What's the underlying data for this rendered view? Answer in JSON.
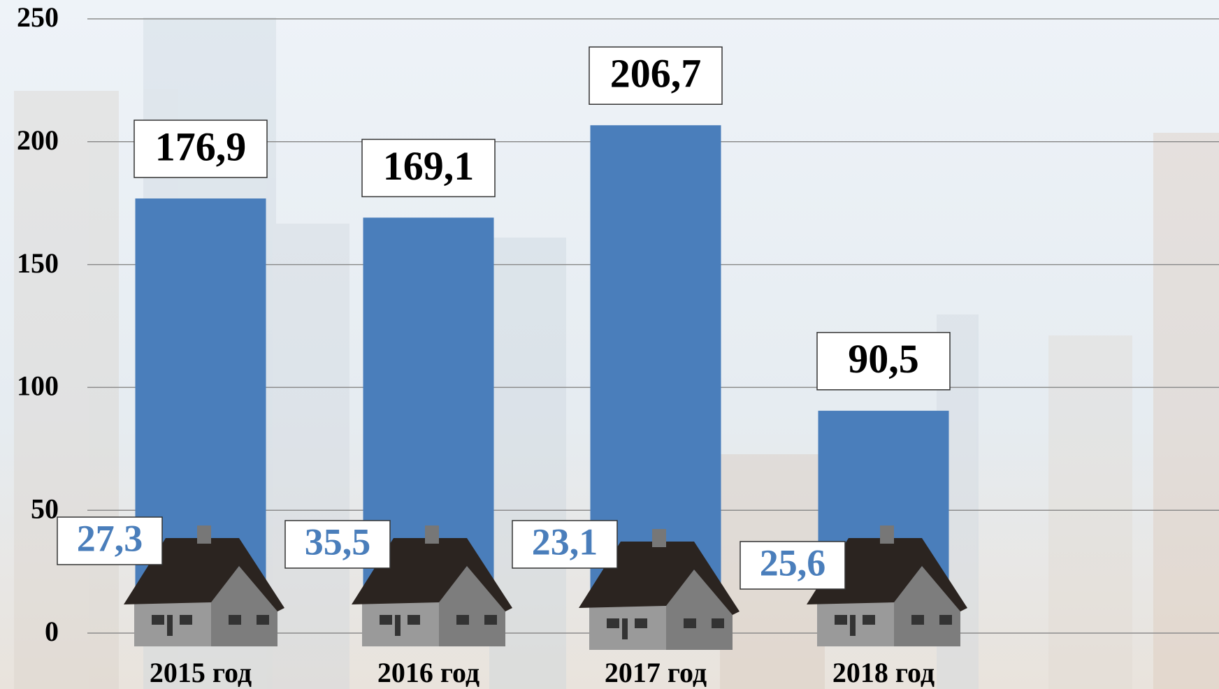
{
  "chart_data": {
    "type": "bar",
    "categories": [
      "2015 год",
      "2016 год",
      "2017 год",
      "2018 год"
    ],
    "values": [
      176.9,
      169.1,
      206.7,
      90.5
    ],
    "value_labels": [
      "176,9",
      "169,1",
      "206,7",
      "90,5"
    ],
    "color": "#4a7ebb",
    "house_values": [
      27.3,
      35.5,
      23.1,
      25.6
    ],
    "house_labels": [
      "27,3",
      "35,5",
      "23,1",
      "25,6"
    ],
    "house_color": "#4a7ebb",
    "ylim": [
      0,
      250
    ],
    "yticks": [
      0,
      50,
      100,
      150,
      200,
      250
    ],
    "grid": true
  }
}
